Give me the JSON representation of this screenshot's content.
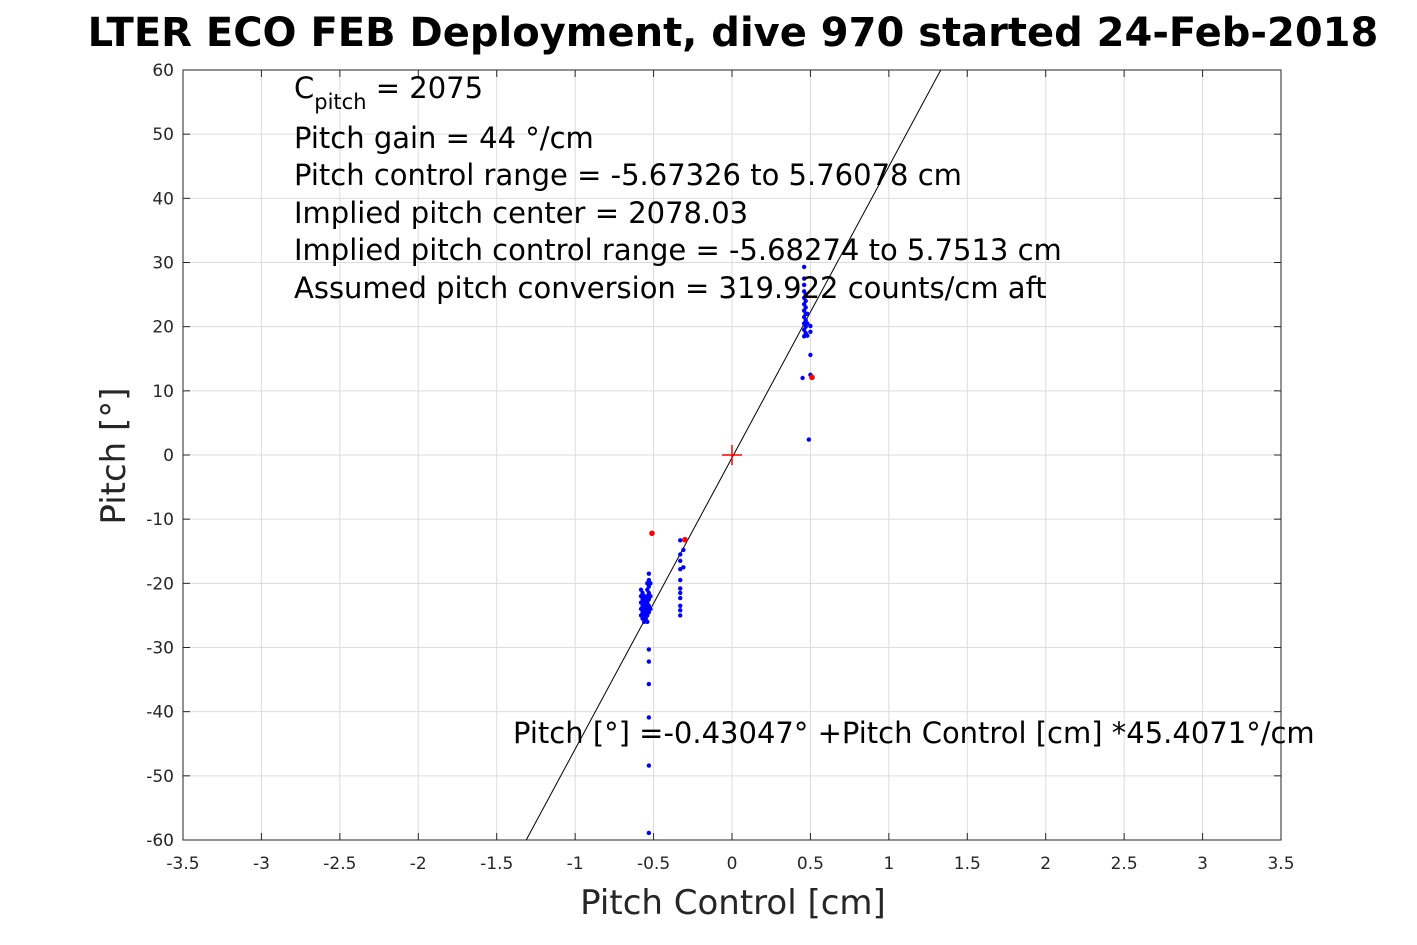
{
  "chart_data": {
    "type": "scatter",
    "title": "LTER ECO FEB Deployment, dive 970 started 24-Feb-2018",
    "xlabel": "Pitch Control [cm]",
    "ylabel": "Pitch [°]",
    "xlim": [
      -3.5,
      3.5
    ],
    "ylim": [
      -60,
      60
    ],
    "xticks": [
      -3.5,
      -3,
      -2.5,
      -2,
      -1.5,
      -1,
      -0.5,
      0,
      0.5,
      1,
      1.5,
      2,
      2.5,
      3,
      3.5
    ],
    "yticks": [
      -60,
      -50,
      -40,
      -30,
      -20,
      -10,
      0,
      10,
      20,
      30,
      40,
      50,
      60
    ],
    "xtick_labels": [
      "-3.5",
      "-3",
      "-2.5",
      "-2",
      "-1.5",
      "-1",
      "-0.5",
      "0",
      "0.5",
      "1",
      "1.5",
      "2",
      "2.5",
      "3",
      "3.5"
    ],
    "ytick_labels": [
      "-60",
      "-50",
      "-40",
      "-30",
      "-20",
      "-10",
      "0",
      "10",
      "20",
      "30",
      "40",
      "50",
      "60"
    ],
    "grid": true,
    "colors": {
      "good": "#0000ff",
      "flagged": "#ff0000",
      "fit": "#000000",
      "center": "#ff0000"
    },
    "fit": {
      "intercept": -0.43047,
      "slope": 45.4071
    },
    "center_marker": {
      "x": 0,
      "y": 0
    },
    "annotations": {
      "c_pitch_main": "C",
      "c_pitch_sub": "pitch",
      "c_pitch_value": " = 2075",
      "line1": "Pitch gain = 44 °/cm",
      "line2": "Pitch control range = -5.67326 to 5.76078 cm",
      "line3": "Implied pitch center = 2078.03",
      "line4": "Implied pitch control range = -5.68274 to 5.7513 cm",
      "line5": "Assumed pitch conversion = 319.922 counts/cm aft",
      "fit_equation": "Pitch [°] =-0.43047° +Pitch Control [cm] *45.4071°/cm"
    },
    "series": [
      {
        "color_key": "good",
        "points": [
          [
            -0.58,
            -21
          ],
          [
            -0.58,
            -22
          ],
          [
            -0.58,
            -23
          ],
          [
            -0.58,
            -24
          ],
          [
            -0.58,
            -25
          ],
          [
            -0.57,
            -21.5
          ],
          [
            -0.57,
            -22.5
          ],
          [
            -0.57,
            -23.5
          ],
          [
            -0.57,
            -24.5
          ],
          [
            -0.57,
            -25.5
          ],
          [
            -0.56,
            -22
          ],
          [
            -0.56,
            -23
          ],
          [
            -0.56,
            -24
          ],
          [
            -0.56,
            -25
          ],
          [
            -0.56,
            -26
          ],
          [
            -0.55,
            -22.5
          ],
          [
            -0.55,
            -23.5
          ],
          [
            -0.55,
            -24.5
          ],
          [
            -0.55,
            -25.5
          ],
          [
            -0.54,
            -20
          ],
          [
            -0.54,
            -21
          ],
          [
            -0.54,
            -22
          ],
          [
            -0.54,
            -23
          ],
          [
            -0.54,
            -24
          ],
          [
            -0.54,
            -25
          ],
          [
            -0.54,
            -26
          ],
          [
            -0.53,
            -18.5
          ],
          [
            -0.53,
            -19.5
          ],
          [
            -0.53,
            -20.5
          ],
          [
            -0.53,
            -21.5
          ],
          [
            -0.53,
            -22.5
          ],
          [
            -0.53,
            -23.5
          ],
          [
            -0.53,
            -24.5
          ],
          [
            -0.52,
            -20
          ],
          [
            -0.52,
            -22
          ],
          [
            -0.52,
            -24
          ],
          [
            -0.53,
            -30.3
          ],
          [
            -0.53,
            -32.2
          ],
          [
            -0.53,
            -35.7
          ],
          [
            -0.53,
            -40.9
          ],
          [
            -0.53,
            -48.4
          ],
          [
            -0.53,
            -58.9
          ],
          [
            -0.33,
            -13.3
          ],
          [
            -0.33,
            -15.5
          ],
          [
            -0.33,
            -16.5
          ],
          [
            -0.33,
            -17.8
          ],
          [
            -0.33,
            -19.5
          ],
          [
            -0.33,
            -20.8
          ],
          [
            -0.33,
            -21.5
          ],
          [
            -0.33,
            -22.3
          ],
          [
            -0.33,
            -23.5
          ],
          [
            -0.33,
            -24.2
          ],
          [
            -0.33,
            -25
          ],
          [
            -0.31,
            -14.8
          ],
          [
            -0.31,
            -17.5
          ],
          [
            0.45,
            12
          ],
          [
            0.46,
            18.5
          ],
          [
            0.46,
            19.5
          ],
          [
            0.46,
            20.5
          ],
          [
            0.46,
            21.5
          ],
          [
            0.46,
            22.5
          ],
          [
            0.46,
            23.5
          ],
          [
            0.46,
            24.5
          ],
          [
            0.46,
            25.5
          ],
          [
            0.46,
            26.5
          ],
          [
            0.46,
            27.5
          ],
          [
            0.46,
            29.3
          ],
          [
            0.47,
            19
          ],
          [
            0.47,
            20
          ],
          [
            0.47,
            21
          ],
          [
            0.47,
            22
          ],
          [
            0.47,
            23
          ],
          [
            0.47,
            24
          ],
          [
            0.47,
            25
          ],
          [
            0.48,
            18.6
          ],
          [
            0.48,
            20.5
          ],
          [
            0.48,
            22
          ],
          [
            0.5,
            19.2
          ],
          [
            0.5,
            20.1
          ],
          [
            0.5,
            15.6
          ],
          [
            0.5,
            12.5
          ],
          [
            0.49,
            2.4
          ]
        ]
      },
      {
        "color_key": "flagged",
        "points": [
          [
            -0.51,
            -12.2
          ],
          [
            -0.3,
            -13.2
          ],
          [
            0.51,
            12.1
          ]
        ]
      }
    ]
  }
}
